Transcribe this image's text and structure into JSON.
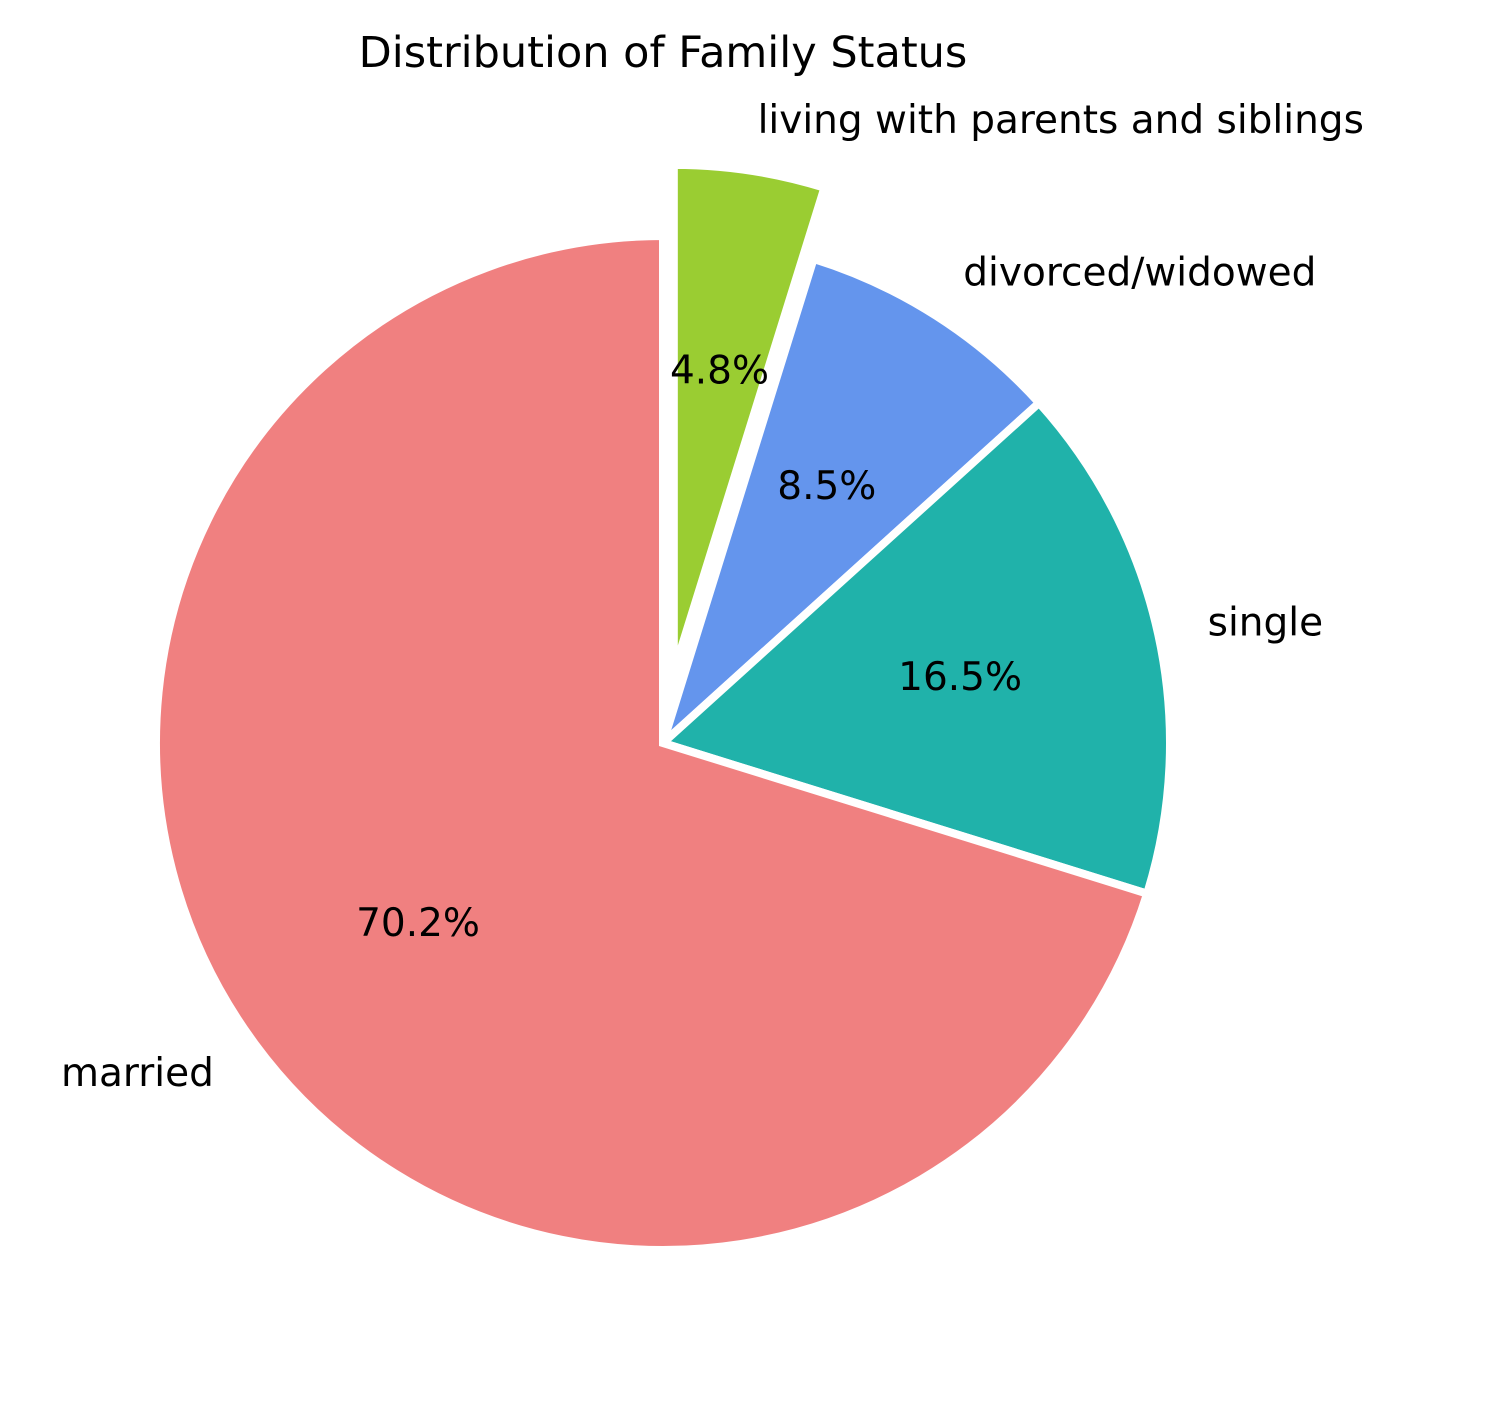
{
  "chart_data": {
    "type": "pie",
    "title": "Distribution of Family Status",
    "start_angle_deg": 90,
    "direction": "clockwise",
    "slices": [
      {
        "label": "living with parents and siblings",
        "value": 4.8,
        "display": "4.8%",
        "color": "#9ACD32",
        "exploded": true
      },
      {
        "label": "divorced/widowed",
        "value": 8.5,
        "display": "8.5%",
        "color": "#6495ED",
        "exploded": false
      },
      {
        "label": "single",
        "value": 16.5,
        "display": "16.5%",
        "color": "#20B2AA",
        "exploded": false
      },
      {
        "label": "married",
        "value": 70.2,
        "display": "70.2%",
        "color": "#F08080",
        "exploded": false
      }
    ],
    "edge_color": "#FFFFFF"
  }
}
